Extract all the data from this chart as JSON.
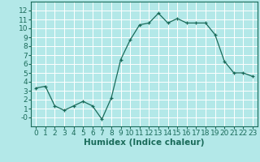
{
  "x": [
    0,
    1,
    2,
    3,
    4,
    5,
    6,
    7,
    8,
    9,
    10,
    11,
    12,
    13,
    14,
    15,
    16,
    17,
    18,
    19,
    20,
    21,
    22,
    23
  ],
  "y": [
    3.3,
    3.5,
    1.3,
    0.8,
    1.3,
    1.8,
    1.3,
    -0.2,
    2.2,
    6.5,
    8.7,
    10.4,
    10.6,
    11.7,
    10.6,
    11.1,
    10.6,
    10.6,
    10.6,
    9.3,
    6.3,
    5.0,
    5.0,
    4.6
  ],
  "line_color": "#1a6b5a",
  "marker": "+",
  "bg_color": "#b3e8e8",
  "grid_color": "#ffffff",
  "xlabel": "Humidex (Indice chaleur)",
  "ylim": [
    -1,
    13
  ],
  "xlim": [
    -0.5,
    23.5
  ],
  "yticks": [
    0,
    1,
    2,
    3,
    4,
    5,
    6,
    7,
    8,
    9,
    10,
    11,
    12
  ],
  "ytick_labels": [
    "-0",
    "1",
    "2",
    "3",
    "4",
    "5",
    "6",
    "7",
    "8",
    "9",
    "10",
    "11",
    "12"
  ],
  "xticks": [
    0,
    1,
    2,
    3,
    4,
    5,
    6,
    7,
    8,
    9,
    10,
    11,
    12,
    13,
    14,
    15,
    16,
    17,
    18,
    19,
    20,
    21,
    22,
    23
  ],
  "font_size": 6.5,
  "xlabel_fontsize": 7.5,
  "xlabel_fontweight": "bold"
}
